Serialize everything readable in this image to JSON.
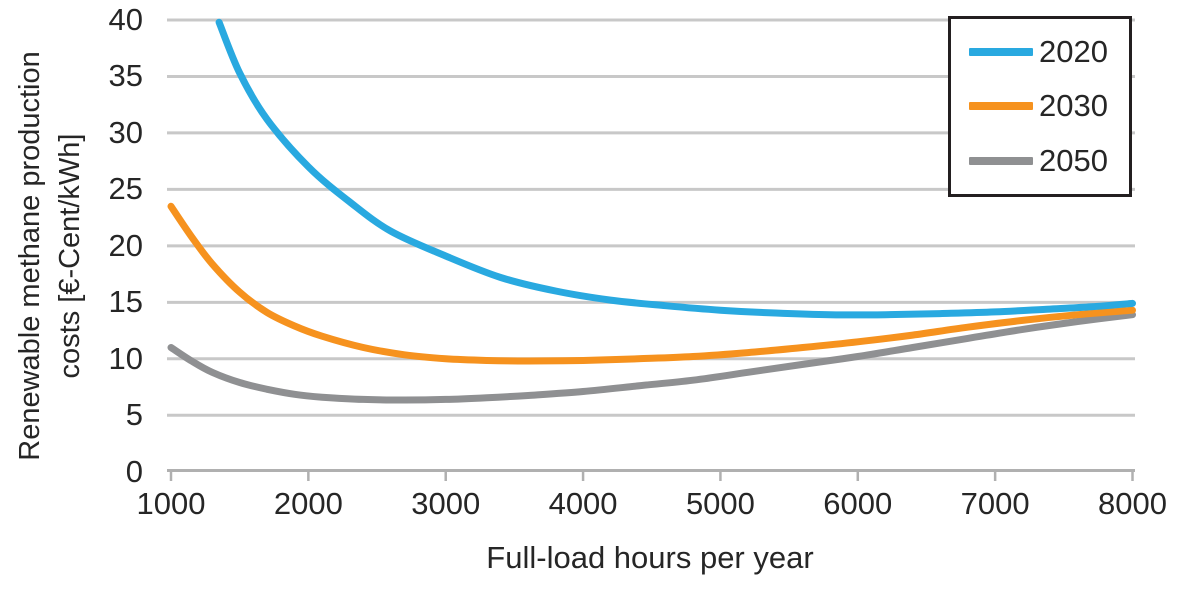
{
  "chart_data": {
    "type": "line",
    "title": "",
    "xlabel": "Full-load hours per year",
    "ylabel_line1": "Renewable methane production",
    "ylabel_line2": "costs [€-Cent/kWh]",
    "xlim": [
      1000,
      8000
    ],
    "ylim": [
      0,
      40
    ],
    "xticks": [
      1000,
      2000,
      3000,
      4000,
      5000,
      6000,
      7000,
      8000
    ],
    "yticks": [
      0,
      5,
      10,
      15,
      20,
      25,
      30,
      35,
      40
    ],
    "grid": "horizontal-only",
    "legend_position": "top-right",
    "legend_entries": [
      "2020",
      "2030",
      "2050"
    ],
    "series": [
      {
        "name": "2020",
        "color": "#29A9E0",
        "points": [
          [
            1350,
            39.8
          ],
          [
            1500,
            35.3
          ],
          [
            1700,
            31.2
          ],
          [
            2000,
            27.0
          ],
          [
            2300,
            23.9
          ],
          [
            2600,
            21.3
          ],
          [
            3000,
            19.1
          ],
          [
            3400,
            17.2
          ],
          [
            3800,
            16.0
          ],
          [
            4200,
            15.2
          ],
          [
            4600,
            14.7
          ],
          [
            5000,
            14.3
          ],
          [
            5400,
            14.05
          ],
          [
            5800,
            13.9
          ],
          [
            6200,
            13.9
          ],
          [
            6600,
            14.0
          ],
          [
            7000,
            14.15
          ],
          [
            7400,
            14.4
          ],
          [
            7700,
            14.6
          ],
          [
            8000,
            14.9
          ]
        ]
      },
      {
        "name": "2030",
        "color": "#F6921E",
        "points": [
          [
            1000,
            23.5
          ],
          [
            1150,
            20.8
          ],
          [
            1300,
            18.4
          ],
          [
            1500,
            15.9
          ],
          [
            1700,
            14.1
          ],
          [
            1900,
            12.9
          ],
          [
            2100,
            12.0
          ],
          [
            2400,
            11.0
          ],
          [
            2700,
            10.35
          ],
          [
            3000,
            10.0
          ],
          [
            3300,
            9.85
          ],
          [
            3600,
            9.8
          ],
          [
            4000,
            9.85
          ],
          [
            4400,
            10.0
          ],
          [
            4800,
            10.2
          ],
          [
            5200,
            10.55
          ],
          [
            5600,
            11.0
          ],
          [
            6000,
            11.5
          ],
          [
            6400,
            12.1
          ],
          [
            6800,
            12.8
          ],
          [
            7200,
            13.4
          ],
          [
            7600,
            13.9
          ],
          [
            8000,
            14.3
          ]
        ]
      },
      {
        "name": "2050",
        "color": "#8F9092",
        "points": [
          [
            1000,
            11.0
          ],
          [
            1150,
            9.8
          ],
          [
            1300,
            8.8
          ],
          [
            1500,
            7.9
          ],
          [
            1700,
            7.3
          ],
          [
            1900,
            6.85
          ],
          [
            2100,
            6.6
          ],
          [
            2400,
            6.4
          ],
          [
            2700,
            6.35
          ],
          [
            3000,
            6.4
          ],
          [
            3300,
            6.55
          ],
          [
            3600,
            6.75
          ],
          [
            4000,
            7.1
          ],
          [
            4400,
            7.6
          ],
          [
            4800,
            8.1
          ],
          [
            5200,
            8.8
          ],
          [
            5600,
            9.5
          ],
          [
            6000,
            10.2
          ],
          [
            6400,
            11.0
          ],
          [
            6800,
            11.8
          ],
          [
            7200,
            12.6
          ],
          [
            7600,
            13.3
          ],
          [
            8000,
            13.9
          ]
        ]
      }
    ]
  },
  "colors": {
    "background": "#FFFFFF",
    "gridline": "#C8C8C8",
    "axis": "#B0B0B0",
    "text": "#262626",
    "legend_border": "#231F20"
  }
}
